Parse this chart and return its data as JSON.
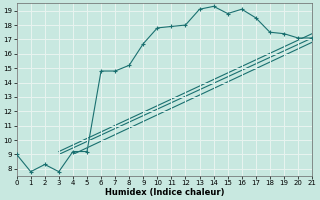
{
  "xlabel": "Humidex (Indice chaleur)",
  "xlim": [
    0,
    21
  ],
  "ylim": [
    7.5,
    19.5
  ],
  "xticks": [
    0,
    1,
    2,
    3,
    4,
    5,
    6,
    7,
    8,
    9,
    10,
    11,
    12,
    13,
    14,
    15,
    16,
    17,
    18,
    19,
    20,
    21
  ],
  "yticks": [
    8,
    9,
    10,
    11,
    12,
    13,
    14,
    15,
    16,
    17,
    18,
    19
  ],
  "bg_color": "#c8e8e0",
  "grid_color": "#e8f4f0",
  "line_color": "#1a7070",
  "main_x": [
    0,
    1,
    2,
    3,
    4,
    5,
    6,
    7,
    8,
    9,
    10,
    11,
    12,
    13,
    14,
    15,
    16,
    17,
    18,
    19,
    20,
    21
  ],
  "main_y": [
    9.0,
    7.8,
    8.3,
    7.8,
    9.2,
    9.2,
    14.8,
    14.8,
    15.2,
    16.7,
    17.8,
    17.9,
    18.0,
    19.1,
    19.3,
    18.8,
    19.1,
    18.5,
    17.5,
    17.4,
    17.1,
    17.1
  ],
  "diag_lines": [
    {
      "x": [
        3,
        21
      ],
      "y": [
        9.2,
        17.4
      ]
    },
    {
      "x": [
        3,
        21
      ],
      "y": [
        9.0,
        17.1
      ]
    },
    {
      "x": [
        4,
        21
      ],
      "y": [
        9.0,
        16.8
      ]
    }
  ]
}
